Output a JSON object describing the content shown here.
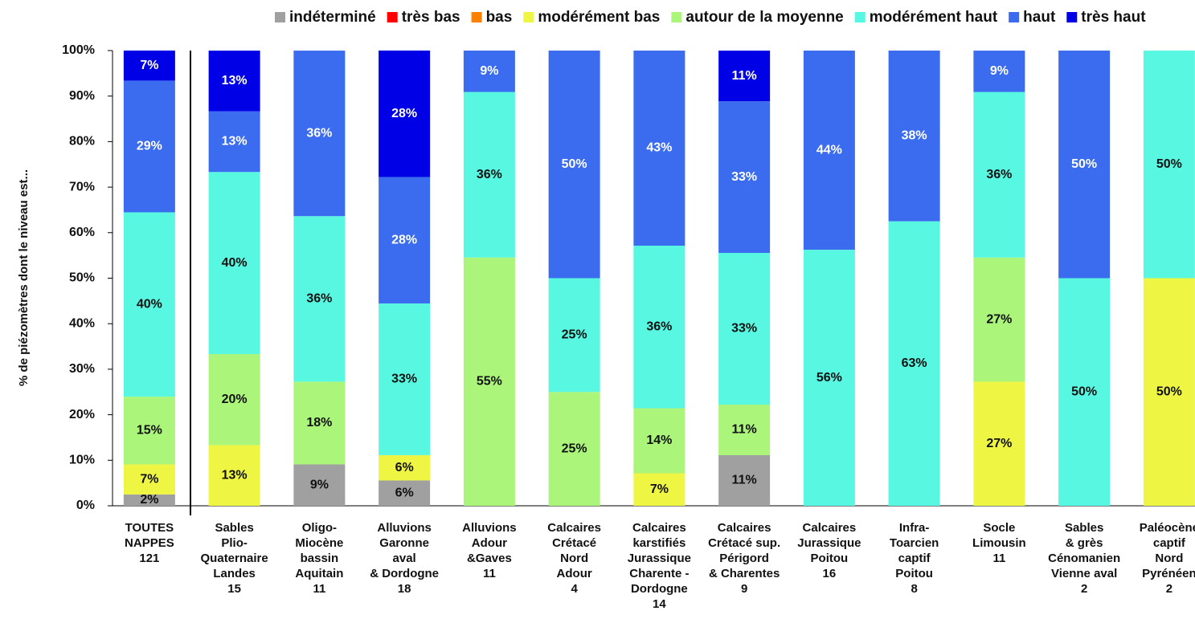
{
  "chart_data": {
    "type": "stacked_bar",
    "ylabel": "% de piézomètres dont le niveau est...",
    "categories": [
      [
        "TOUTES",
        "NAPPES",
        "121"
      ],
      [
        "Sables",
        "Plio-",
        "Quaternaire",
        "Landes",
        "15"
      ],
      [
        "Oligo-",
        "Miocène",
        "bassin",
        "Aquitain",
        "11"
      ],
      [
        "Alluvions",
        "Garonne",
        "aval",
        "& Dordogne",
        "18"
      ],
      [
        "Alluvions",
        "Adour",
        "&Gaves",
        "11"
      ],
      [
        "Calcaires",
        "Crétacé",
        "Nord",
        "Adour",
        "4"
      ],
      [
        "Calcaires",
        "karstifiés",
        "Jurassique",
        "Charente -",
        "Dordogne",
        "14"
      ],
      [
        "Calcaires",
        "Crétacé sup.",
        "Périgord",
        "& Charentes",
        "9"
      ],
      [
        "Calcaires",
        "Jurassique",
        "Poitou",
        "16"
      ],
      [
        "Infra-",
        "Toarcien",
        "captif",
        "Poitou",
        "8"
      ],
      [
        "Socle",
        "Limousin",
        "11"
      ],
      [
        "Sables",
        "& grès",
        "Cénomanien",
        "Vienne aval",
        "2"
      ],
      [
        "Paléocène",
        "captif",
        "Nord",
        "Pyrénéen",
        "2"
      ]
    ],
    "series": [
      {
        "name": "indéterminé",
        "color": "#a0a0a0",
        "values": [
          2.48,
          null,
          9.09,
          5.56,
          null,
          null,
          null,
          11.11,
          null,
          null,
          null,
          null,
          null
        ],
        "value_labels": [
          "2%",
          null,
          "9%",
          "6%",
          null,
          null,
          null,
          "11%",
          null,
          null,
          null,
          null,
          null
        ]
      },
      {
        "name": "très bas",
        "color": "#ff0000",
        "values": [
          null,
          null,
          null,
          null,
          null,
          null,
          null,
          null,
          null,
          null,
          null,
          null,
          null
        ],
        "value_labels": [
          null,
          null,
          null,
          null,
          null,
          null,
          null,
          null,
          null,
          null,
          null,
          null,
          null
        ]
      },
      {
        "name": "bas",
        "color": "#ff8000",
        "values": [
          null,
          null,
          null,
          null,
          null,
          null,
          null,
          null,
          null,
          null,
          null,
          null,
          null
        ],
        "value_labels": [
          null,
          null,
          null,
          null,
          null,
          null,
          null,
          null,
          null,
          null,
          null,
          null,
          null
        ]
      },
      {
        "name": "modérément bas",
        "color": "#eef542",
        "values": [
          6.61,
          13.33,
          null,
          5.56,
          null,
          null,
          7.14,
          null,
          null,
          null,
          27.27,
          null,
          50
        ],
        "value_labels": [
          "7%",
          "13%",
          null,
          "6%",
          null,
          null,
          "7%",
          null,
          null,
          null,
          "27%",
          null,
          "50%"
        ]
      },
      {
        "name": "autour de la moyenne",
        "color": "#aaf57a",
        "values": [
          14.88,
          20,
          18.18,
          null,
          54.55,
          25,
          14.29,
          11.11,
          null,
          null,
          27.27,
          null,
          null
        ],
        "value_labels": [
          "15%",
          "20%",
          "18%",
          null,
          "55%",
          "25%",
          "14%",
          "11%",
          null,
          null,
          "27%",
          null,
          null
        ]
      },
      {
        "name": "modérément haut",
        "color": "#58f7e2",
        "values": [
          40.5,
          40,
          36.36,
          33.33,
          36.36,
          25,
          35.71,
          33.33,
          56.25,
          62.5,
          36.36,
          50,
          50
        ],
        "value_labels": [
          "40%",
          "40%",
          "36%",
          "33%",
          "36%",
          "25%",
          "36%",
          "33%",
          "56%",
          "63%",
          "36%",
          "50%",
          "50%"
        ]
      },
      {
        "name": "haut",
        "color": "#3b6cf0",
        "values": [
          28.93,
          13.33,
          36.36,
          27.78,
          9.09,
          50,
          42.86,
          33.33,
          43.75,
          37.5,
          9.09,
          50,
          null
        ],
        "value_labels": [
          "29%",
          "13%",
          "36%",
          "28%",
          "9%",
          "50%",
          "43%",
          "33%",
          "44%",
          "38%",
          "9%",
          "50%",
          null
        ]
      },
      {
        "name": "très haut",
        "color": "#0000e6",
        "values": [
          6.61,
          13.33,
          null,
          27.78,
          null,
          null,
          null,
          11.11,
          null,
          null,
          null,
          null,
          null
        ],
        "value_labels": [
          "7%",
          "13%",
          null,
          "28%",
          null,
          null,
          null,
          "11%",
          null,
          null,
          null,
          null,
          null
        ]
      }
    ],
    "ylim": [
      0,
      100
    ],
    "yticks": [
      {
        "value": 0,
        "label": "0%"
      },
      {
        "value": 10,
        "label": "10%"
      },
      {
        "value": 20,
        "label": "20%"
      },
      {
        "value": 30,
        "label": "30%"
      },
      {
        "value": 40,
        "label": "40%"
      },
      {
        "value": 50,
        "label": "50%"
      },
      {
        "value": 60,
        "label": "60%"
      },
      {
        "value": 70,
        "label": "70%"
      },
      {
        "value": 80,
        "label": "80%"
      },
      {
        "value": 90,
        "label": "90%"
      },
      {
        "value": 100,
        "label": "100%"
      }
    ],
    "legend": "top"
  }
}
